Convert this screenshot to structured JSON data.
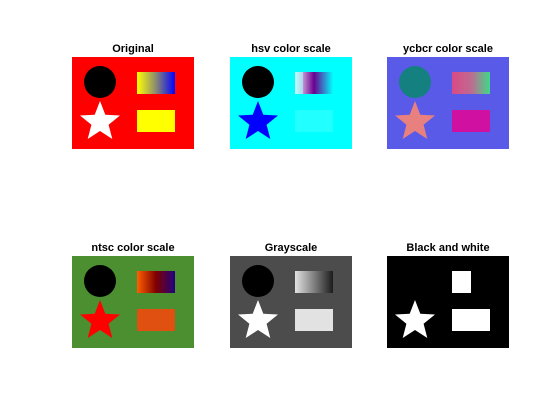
{
  "panels": [
    {
      "title": "Original",
      "colors": {
        "background": "#ff0000",
        "circle": "#000000",
        "star": "#ffffff",
        "rect": "#ffff00",
        "gradient": [
          "#ffff00",
          "#8a8a72",
          "#0000ff"
        ]
      },
      "icons": {
        "circle": "circle-shape",
        "star": "star-shape",
        "gradient": "gradient-bar",
        "rect": "solid-rectangle"
      }
    },
    {
      "title": "hsv color scale",
      "colors": {
        "background": "#00ffff",
        "circle": "#000000",
        "star": "#0000ff",
        "rect": "#22ffff",
        "gradient": [
          "#ffffff",
          "#6c0090",
          "#00ffff"
        ],
        "gradient_tint": "#99ffff"
      },
      "icons": {
        "circle": "circle-shape",
        "star": "star-shape",
        "gradient": "gradient-bar",
        "rect": "solid-rectangle"
      }
    },
    {
      "title": "ycbcr color scale",
      "colors": {
        "background": "#5a5ae8",
        "circle": "#148080",
        "star": "#e88080",
        "rect": "#d010a0",
        "gradient": [
          "#d84a84",
          "#c06a90",
          "#40d888"
        ]
      },
      "icons": {
        "circle": "circle-shape",
        "star": "star-shape",
        "gradient": "gradient-bar",
        "rect": "solid-rectangle"
      }
    },
    {
      "title": "ntsc color scale",
      "colors": {
        "background": "#4c8f30",
        "circle": "#000000",
        "star": "#ff0000",
        "rect": "#e05010",
        "gradient": [
          "#ff6000",
          "#800000",
          "#200080"
        ]
      },
      "icons": {
        "circle": "circle-shape",
        "star": "star-shape",
        "gradient": "gradient-bar",
        "rect": "solid-rectangle"
      }
    },
    {
      "title": "Grayscale",
      "colors": {
        "background": "#4c4c4c",
        "circle": "#000000",
        "star": "#ffffff",
        "rect": "#e2e2e2",
        "gradient": [
          "#e2e2e2",
          "#808080",
          "#1c1c1c"
        ]
      },
      "icons": {
        "circle": "circle-shape",
        "star": "star-shape",
        "gradient": "gradient-bar",
        "rect": "solid-rectangle"
      }
    },
    {
      "title": "Black and white",
      "colors": {
        "background": "#000000",
        "circle": "#000000",
        "star": "#ffffff",
        "rect": "#ffffff",
        "gradient": [
          "#ffffff",
          "#ffffff",
          "#000000"
        ]
      },
      "icons": {
        "circle": "circle-shape",
        "star": "star-shape",
        "gradient": "gradient-bar",
        "rect": "solid-rectangle"
      }
    }
  ]
}
